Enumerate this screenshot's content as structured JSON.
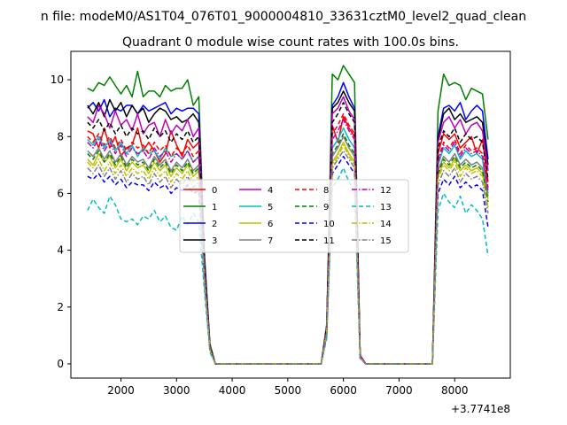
{
  "figure": {
    "suptitle": "n file: modeM0/AS1T04_076T01_9000004810_33631cztM0_level2_quad_clean",
    "offset_label": "+3.7741e8"
  },
  "chart_data": {
    "type": "line",
    "title": "Quadrant 0 module wise count rates with 100.0s bins.",
    "xlabel": "",
    "ylabel": "",
    "xlim": [
      1100,
      9000
    ],
    "ylim": [
      -0.5,
      11.0
    ],
    "x_ticks": [
      2000,
      3000,
      4000,
      5000,
      6000,
      7000,
      8000
    ],
    "y_ticks": [
      0,
      2,
      4,
      6,
      8,
      10
    ],
    "grid": false,
    "legend": {
      "placement": "center",
      "columns": 4
    },
    "x": [
      1400,
      1500,
      1600,
      1700,
      1800,
      1900,
      2000,
      2100,
      2200,
      2300,
      2400,
      2500,
      2600,
      2700,
      2800,
      2900,
      3000,
      3100,
      3200,
      3300,
      3400,
      3500,
      3600,
      3700,
      3800,
      3900,
      4000,
      4100,
      4200,
      4300,
      4400,
      4500,
      4600,
      4700,
      4800,
      4900,
      5000,
      5100,
      5200,
      5300,
      5400,
      5500,
      5600,
      5700,
      5800,
      5900,
      6000,
      6100,
      6200,
      6300,
      6400,
      6500,
      6600,
      6700,
      6800,
      6900,
      7000,
      7100,
      7200,
      7300,
      7400,
      7500,
      7600,
      7700,
      7800,
      7900,
      8000,
      8100,
      8200,
      8300,
      8400,
      8500,
      8600
    ],
    "series": [
      {
        "name": "0",
        "color": "#ff0000",
        "dash": "solid",
        "values": [
          8.2,
          8.1,
          7.6,
          8.3,
          7.6,
          8.0,
          7.3,
          7.6,
          7.7,
          8.3,
          7.5,
          7.8,
          7.5,
          7.1,
          7.4,
          8.2,
          7.7,
          7.3,
          7.9,
          7.6,
          7.8,
          3.5,
          0.6,
          0,
          0,
          0,
          0,
          0,
          0,
          0,
          0,
          0,
          0,
          0,
          0,
          0,
          0,
          0,
          0,
          0,
          0,
          0,
          0,
          1.3,
          8.4,
          7.8,
          8.7,
          8.3,
          8.0,
          0.3,
          0,
          0,
          0,
          0,
          0,
          0,
          0,
          0,
          0,
          0,
          0,
          0,
          0,
          7.4,
          8.1,
          7.9,
          8.1,
          7.6,
          7.8,
          8.0,
          7.4,
          7.9,
          6.4
        ]
      },
      {
        "name": "1",
        "color": "#008000",
        "dash": "solid",
        "values": [
          9.7,
          9.6,
          9.9,
          9.8,
          10.1,
          9.8,
          9.5,
          9.8,
          9.4,
          10.3,
          9.4,
          9.6,
          9.6,
          9.4,
          9.8,
          9.6,
          9.7,
          9.7,
          10.0,
          9.1,
          9.4,
          3.9,
          0.7,
          0,
          0,
          0,
          0,
          0,
          0,
          0,
          0,
          0,
          0,
          0,
          0,
          0,
          0,
          0,
          0,
          0,
          0,
          0,
          0,
          1.4,
          10.2,
          10.0,
          10.5,
          10.2,
          9.9,
          0.3,
          0,
          0,
          0,
          0,
          0,
          0,
          0,
          0,
          0,
          0,
          0,
          0,
          0,
          8.9,
          10.2,
          9.8,
          9.9,
          9.8,
          9.3,
          9.7,
          9.6,
          9.5,
          7.9
        ]
      },
      {
        "name": "2",
        "color": "#0000ff",
        "dash": "solid",
        "values": [
          9.0,
          9.2,
          8.9,
          9.3,
          8.7,
          9.0,
          8.9,
          9.1,
          9.1,
          8.8,
          9.1,
          8.9,
          9.0,
          9.1,
          9.2,
          8.8,
          9.0,
          8.9,
          9.0,
          9.0,
          8.8,
          3.7,
          0.6,
          0,
          0,
          0,
          0,
          0,
          0,
          0,
          0,
          0,
          0,
          0,
          0,
          0,
          0,
          0,
          0,
          0,
          0,
          0,
          0,
          1.3,
          9.1,
          9.4,
          9.9,
          9.4,
          9.0,
          0.3,
          0,
          0,
          0,
          0,
          0,
          0,
          0,
          0,
          0,
          0,
          0,
          0,
          0,
          8.0,
          9.0,
          9.1,
          8.9,
          9.2,
          8.6,
          8.9,
          9.1,
          8.9,
          7.2
        ]
      },
      {
        "name": "3",
        "color": "#000000",
        "dash": "solid",
        "values": [
          9.1,
          8.8,
          9.2,
          8.7,
          9.3,
          8.9,
          9.2,
          8.7,
          9.1,
          8.8,
          9.0,
          8.5,
          8.8,
          9.0,
          8.9,
          8.6,
          8.7,
          8.5,
          8.6,
          8.8,
          8.5,
          3.6,
          0.6,
          0,
          0,
          0,
          0,
          0,
          0,
          0,
          0,
          0,
          0,
          0,
          0,
          0,
          0,
          0,
          0,
          0,
          0,
          0,
          0,
          1.3,
          9.0,
          9.2,
          9.6,
          9.2,
          8.9,
          0.3,
          0,
          0,
          0,
          0,
          0,
          0,
          0,
          0,
          0,
          0,
          0,
          0,
          0,
          7.9,
          8.8,
          9.0,
          8.6,
          8.8,
          8.5,
          8.6,
          8.7,
          8.5,
          7.0
        ]
      },
      {
        "name": "4",
        "color": "#bf00bf",
        "dash": "solid",
        "values": [
          8.7,
          8.5,
          9.1,
          8.8,
          8.3,
          8.9,
          8.4,
          8.6,
          8.2,
          8.8,
          8.1,
          8.4,
          8.5,
          8.0,
          8.6,
          8.1,
          8.4,
          8.2,
          8.6,
          8.0,
          8.3,
          3.5,
          0.6,
          0,
          0,
          0,
          0,
          0,
          0,
          0,
          0,
          0,
          0,
          0,
          0,
          0,
          0,
          0,
          0,
          0,
          0,
          0,
          0,
          1.3,
          8.8,
          9.0,
          9.4,
          8.9,
          8.6,
          0.3,
          0,
          0,
          0,
          0,
          0,
          0,
          0,
          0,
          0,
          0,
          0,
          0,
          0,
          7.8,
          8.5,
          8.7,
          8.3,
          8.6,
          8.1,
          8.4,
          8.5,
          8.2,
          6.8
        ]
      },
      {
        "name": "5",
        "color": "#00bfbf",
        "dash": "solid",
        "values": [
          7.9,
          7.7,
          8.0,
          7.6,
          7.9,
          7.5,
          7.8,
          7.4,
          7.7,
          7.3,
          7.6,
          7.4,
          7.5,
          7.2,
          7.6,
          7.3,
          7.4,
          7.2,
          7.5,
          7.1,
          7.3,
          3.3,
          0.5,
          0,
          0,
          0,
          0,
          0,
          0,
          0,
          0,
          0,
          0,
          0,
          0,
          0,
          0,
          0,
          0,
          0,
          0,
          0,
          0,
          1.2,
          7.6,
          7.9,
          8.3,
          7.9,
          7.6,
          0.3,
          0,
          0,
          0,
          0,
          0,
          0,
          0,
          0,
          0,
          0,
          0,
          0,
          0,
          7.0,
          7.6,
          7.4,
          7.7,
          7.2,
          7.5,
          7.3,
          7.4,
          7.2,
          6.0
        ]
      },
      {
        "name": "6",
        "color": "#bfbf00",
        "dash": "solid",
        "values": [
          7.2,
          7.0,
          7.4,
          7.1,
          7.3,
          6.9,
          7.2,
          6.8,
          7.1,
          6.9,
          7.0,
          6.7,
          7.1,
          6.8,
          7.0,
          6.6,
          6.9,
          6.7,
          7.0,
          6.6,
          6.8,
          3.1,
          0.5,
          0,
          0,
          0,
          0,
          0,
          0,
          0,
          0,
          0,
          0,
          0,
          0,
          0,
          0,
          0,
          0,
          0,
          0,
          0,
          0,
          1.1,
          7.1,
          7.4,
          7.8,
          7.4,
          7.1,
          0.2,
          0,
          0,
          0,
          0,
          0,
          0,
          0,
          0,
          0,
          0,
          0,
          0,
          0,
          6.6,
          7.1,
          6.9,
          7.2,
          6.8,
          7.0,
          6.8,
          6.9,
          6.7,
          5.8
        ]
      },
      {
        "name": "7",
        "color": "#808080",
        "dash": "solid",
        "values": [
          7.5,
          7.3,
          7.6,
          7.2,
          7.5,
          7.1,
          7.4,
          7.0,
          7.3,
          7.1,
          7.2,
          6.9,
          7.3,
          7.0,
          7.2,
          6.8,
          7.1,
          6.9,
          7.2,
          6.8,
          7.0,
          3.2,
          0.5,
          0,
          0,
          0,
          0,
          0,
          0,
          0,
          0,
          0,
          0,
          0,
          0,
          0,
          0,
          0,
          0,
          0,
          0,
          0,
          0,
          1.1,
          7.3,
          7.6,
          8.0,
          7.6,
          7.3,
          0.2,
          0,
          0,
          0,
          0,
          0,
          0,
          0,
          0,
          0,
          0,
          0,
          0,
          0,
          6.8,
          7.3,
          7.1,
          7.4,
          7.0,
          7.2,
          7.0,
          7.1,
          6.9,
          5.9
        ]
      },
      {
        "name": "8",
        "color": "#ff0000",
        "dash": "dashed",
        "values": [
          8.0,
          7.8,
          8.1,
          7.7,
          8.0,
          7.6,
          7.9,
          7.5,
          7.8,
          7.6,
          7.7,
          7.4,
          7.8,
          7.5,
          7.7,
          7.3,
          7.6,
          7.4,
          7.7,
          7.3,
          7.5,
          3.4,
          0.6,
          0,
          0,
          0,
          0,
          0,
          0,
          0,
          0,
          0,
          0,
          0,
          0,
          0,
          0,
          0,
          0,
          0,
          0,
          0,
          0,
          1.2,
          8.1,
          8.4,
          8.8,
          8.4,
          8.1,
          0.3,
          0,
          0,
          0,
          0,
          0,
          0,
          0,
          0,
          0,
          0,
          0,
          0,
          0,
          7.2,
          7.8,
          7.6,
          7.9,
          7.4,
          7.7,
          7.5,
          7.6,
          7.4,
          6.2
        ]
      },
      {
        "name": "9",
        "color": "#008000",
        "dash": "dashed",
        "values": [
          7.4,
          7.2,
          7.5,
          7.1,
          7.4,
          7.0,
          7.3,
          6.9,
          7.2,
          7.0,
          7.1,
          6.8,
          7.2,
          6.9,
          7.1,
          6.7,
          7.0,
          6.8,
          7.1,
          6.7,
          6.9,
          3.2,
          0.5,
          0,
          0,
          0,
          0,
          0,
          0,
          0,
          0,
          0,
          0,
          0,
          0,
          0,
          0,
          0,
          0,
          0,
          0,
          0,
          0,
          1.1,
          7.4,
          7.7,
          8.1,
          7.7,
          7.4,
          0.2,
          0,
          0,
          0,
          0,
          0,
          0,
          0,
          0,
          0,
          0,
          0,
          0,
          0,
          6.7,
          7.2,
          7.0,
          7.3,
          6.9,
          7.1,
          6.9,
          7.0,
          6.8,
          5.7
        ]
      },
      {
        "name": "10",
        "color": "#0000ff",
        "dash": "dashed",
        "values": [
          6.6,
          6.5,
          6.7,
          6.4,
          6.6,
          6.3,
          6.5,
          6.2,
          6.4,
          6.3,
          6.3,
          6.1,
          6.4,
          6.2,
          6.3,
          6.0,
          6.2,
          6.1,
          6.3,
          6.0,
          6.1,
          2.9,
          0.5,
          0,
          0,
          0,
          0,
          0,
          0,
          0,
          0,
          0,
          0,
          0,
          0,
          0,
          0,
          0,
          0,
          0,
          0,
          0,
          0,
          1.0,
          6.7,
          7.0,
          7.3,
          7.0,
          6.7,
          0.2,
          0,
          0,
          0,
          0,
          0,
          0,
          0,
          0,
          0,
          0,
          0,
          0,
          0,
          6.0,
          6.5,
          6.3,
          6.6,
          6.2,
          6.4,
          6.2,
          6.3,
          6.1,
          4.8
        ]
      },
      {
        "name": "11",
        "color": "#000000",
        "dash": "dashed",
        "values": [
          8.5,
          8.3,
          8.6,
          8.2,
          8.5,
          8.1,
          8.4,
          8.0,
          8.3,
          8.1,
          8.2,
          7.9,
          8.3,
          8.0,
          8.2,
          7.8,
          8.1,
          7.9,
          8.2,
          7.8,
          8.0,
          3.5,
          0.6,
          0,
          0,
          0,
          0,
          0,
          0,
          0,
          0,
          0,
          0,
          0,
          0,
          0,
          0,
          0,
          0,
          0,
          0,
          0,
          0,
          1.3,
          8.5,
          8.8,
          9.2,
          8.8,
          8.5,
          0.3,
          0,
          0,
          0,
          0,
          0,
          0,
          0,
          0,
          0,
          0,
          0,
          0,
          0,
          7.6,
          8.2,
          8.0,
          8.3,
          7.8,
          8.1,
          7.9,
          8.0,
          7.8,
          6.5
        ]
      },
      {
        "name": "12",
        "color": "#bf00bf",
        "dash": "dashdot",
        "values": [
          7.8,
          7.6,
          7.9,
          7.5,
          7.8,
          7.4,
          7.7,
          7.3,
          7.6,
          7.4,
          7.5,
          7.2,
          7.6,
          7.3,
          7.5,
          7.1,
          7.4,
          7.2,
          7.5,
          7.1,
          7.3,
          3.3,
          0.5,
          0,
          0,
          0,
          0,
          0,
          0,
          0,
          0,
          0,
          0,
          0,
          0,
          0,
          0,
          0,
          0,
          0,
          0,
          0,
          0,
          1.2,
          7.9,
          8.2,
          8.6,
          8.2,
          7.9,
          0.3,
          0,
          0,
          0,
          0,
          0,
          0,
          0,
          0,
          0,
          0,
          0,
          0,
          0,
          7.1,
          7.7,
          7.5,
          7.8,
          7.3,
          7.6,
          7.4,
          7.5,
          7.3,
          6.1
        ]
      },
      {
        "name": "13",
        "color": "#00bfbf",
        "dash": "dashed",
        "values": [
          5.4,
          5.8,
          5.5,
          5.3,
          5.9,
          5.6,
          5.1,
          5.0,
          5.1,
          4.9,
          5.2,
          5.1,
          5.4,
          5.0,
          5.2,
          4.8,
          4.7,
          5.2,
          4.9,
          5.3,
          5.0,
          2.6,
          0.4,
          0,
          0,
          0,
          0,
          0,
          0,
          0,
          0,
          0,
          0,
          0,
          0,
          0,
          0,
          0,
          0,
          0,
          0,
          0,
          0,
          0.9,
          6.2,
          6.5,
          6.9,
          6.4,
          6.1,
          0.2,
          0,
          0,
          0,
          0,
          0,
          0,
          0,
          0,
          0,
          0,
          0,
          0,
          0,
          5.4,
          6.0,
          5.7,
          5.5,
          5.9,
          5.3,
          5.6,
          5.4,
          5.1,
          3.8
        ]
      },
      {
        "name": "14",
        "color": "#bfbf00",
        "dash": "dashdot",
        "values": [
          7.1,
          6.9,
          7.2,
          6.8,
          7.1,
          6.7,
          7.0,
          6.6,
          6.9,
          6.7,
          6.8,
          6.5,
          6.9,
          6.6,
          6.8,
          6.4,
          6.7,
          6.5,
          6.8,
          6.4,
          6.6,
          3.0,
          0.5,
          0,
          0,
          0,
          0,
          0,
          0,
          0,
          0,
          0,
          0,
          0,
          0,
          0,
          0,
          0,
          0,
          0,
          0,
          0,
          0,
          1.1,
          7.0,
          7.3,
          7.7,
          7.3,
          7.0,
          0.2,
          0,
          0,
          0,
          0,
          0,
          0,
          0,
          0,
          0,
          0,
          0,
          0,
          0,
          6.5,
          7.0,
          6.8,
          7.1,
          6.6,
          6.9,
          6.7,
          6.8,
          6.6,
          5.5
        ]
      },
      {
        "name": "15",
        "color": "#808080",
        "dash": "dashdot",
        "values": [
          6.9,
          6.7,
          7.0,
          6.6,
          6.9,
          6.5,
          6.8,
          6.4,
          6.7,
          6.5,
          6.6,
          6.3,
          6.7,
          6.4,
          6.6,
          6.2,
          6.5,
          6.3,
          6.6,
          6.2,
          6.4,
          3.0,
          0.5,
          0,
          0,
          0,
          0,
          0,
          0,
          0,
          0,
          0,
          0,
          0,
          0,
          0,
          0,
          0,
          0,
          0,
          0,
          0,
          0,
          1.0,
          6.9,
          7.2,
          7.5,
          7.2,
          6.9,
          0.2,
          0,
          0,
          0,
          0,
          0,
          0,
          0,
          0,
          0,
          0,
          0,
          0,
          0,
          6.3,
          6.8,
          6.6,
          6.9,
          6.4,
          6.7,
          6.5,
          6.6,
          6.4,
          5.3
        ]
      }
    ]
  }
}
